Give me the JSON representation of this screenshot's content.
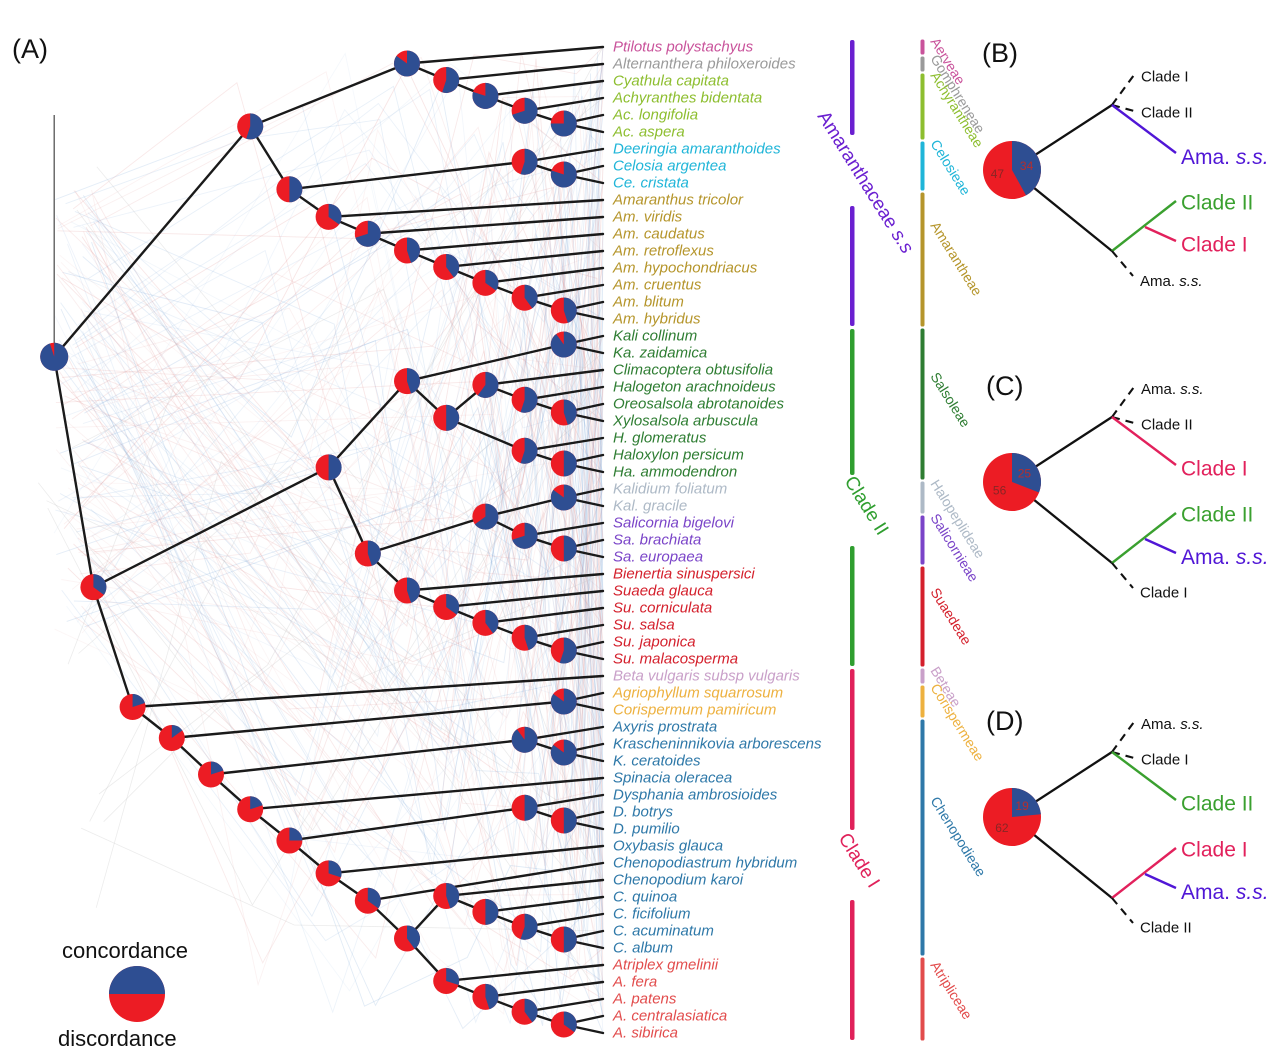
{
  "figure_letters": {
    "a": "(A)",
    "b": "(B)",
    "c": "(C)",
    "d": "(D)"
  },
  "legend": {
    "top": "concordance",
    "bottom": "discordance"
  },
  "palette": {
    "pie_blue": "#2E4E92",
    "pie_red": "#EC1C24",
    "edge": "#1a1a1a",
    "cloud_blue": "#7FA8D8",
    "cloud_red": "#DE9191",
    "cloud_gray": "#C8C8C8",
    "big_purple": "#5016D6",
    "big_green": "#3AA02F",
    "big_crimson": "#E2215C",
    "num_on_red": "#8A2525",
    "num_on_blue": "#B62E2E"
  },
  "species": [
    "Ptilotus polystachyus",
    "Alternanthera philoxeroides",
    "Cyathula capitata",
    "Achyranthes bidentata",
    "Ac. longifolia",
    "Ac. aspera",
    "Deeringia amaranthoides",
    "Celosia argentea",
    "Ce. cristata",
    "Amaranthus tricolor",
    "Am. viridis",
    "Am. caudatus",
    "Am. retroflexus",
    "Am. hypochondriacus",
    "Am. cruentus",
    "Am. blitum",
    "Am. hybridus",
    "Kali collinum",
    "Ka. zaidamica",
    "Climacoptera obtusifolia",
    "Halogeton arachnoideus",
    "Oreosalsola abrotanoides",
    "Xylosalsola arbuscula",
    "H. glomeratus",
    "Haloxylon persicum",
    "Ha. ammodendron",
    "Kalidium foliatum",
    "Kal. gracile",
    "Salicornia bigelovi",
    "Sa. brachiata",
    "Sa. europaea",
    "Bienertia sinuspersici",
    "Suaeda glauca",
    "Su. corniculata",
    "Su. salsa",
    "Su. japonica",
    "Su. malacosperma",
    "Beta vulgaris subsp vulgaris",
    "Agriophyllum squarrosum",
    "Corispermum pamiricum",
    "Axyris prostrata",
    "Krascheninnikovia arborescens",
    "K. ceratoides",
    "Spinacia oleracea",
    "Dysphania ambrosioides",
    "D. botrys",
    "D. pumilio",
    "Oxybasis glauca",
    "Chenopodiastrum hybridum",
    "Chenopodium karoi",
    "C. quinoa",
    "C. ficifolium",
    "C. acuminatum",
    "C. album",
    "Atriplex gmelinii",
    "A. fera",
    "A. patens",
    "A. centralasiatica",
    "A. sibirica"
  ],
  "tribes": [
    {
      "name": "Aerveae",
      "color": "#C9539B",
      "from": 0,
      "to": 0
    },
    {
      "name": "Gomphreneae",
      "color": "#9A9A9A",
      "from": 1,
      "to": 1
    },
    {
      "name": "Achyrantheae",
      "color": "#8DBE2F",
      "from": 2,
      "to": 5
    },
    {
      "name": "Celosieae",
      "color": "#1FB5D8",
      "from": 6,
      "to": 8
    },
    {
      "name": "Amarantheae",
      "color": "#B5952B",
      "from": 9,
      "to": 16
    },
    {
      "name": "Salsoleae",
      "color": "#2E7D32",
      "from": 17,
      "to": 25
    },
    {
      "name": "Halopeplideae",
      "color": "#ADB9C6",
      "from": 26,
      "to": 27
    },
    {
      "name": "Salicornieae",
      "color": "#7A44C8",
      "from": 28,
      "to": 30
    },
    {
      "name": "Suaedeae",
      "color": "#D4202C",
      "from": 31,
      "to": 36
    },
    {
      "name": "Beteae",
      "color": "#C9A0C9",
      "from": 37,
      "to": 37
    },
    {
      "name": "Corispermeae",
      "color": "#EDB13F",
      "from": 38,
      "to": 39
    },
    {
      "name": "Chenopodieae",
      "color": "#2E78A8",
      "from": 40,
      "to": 53
    },
    {
      "name": "Atripliceae",
      "color": "#E24C4C",
      "from": 54,
      "to": 58
    }
  ],
  "clades": [
    {
      "name": "Amaranthaceae s.s",
      "color": "#6A1FD0",
      "from": 0,
      "to": 16,
      "gap": [
        135,
        206
      ],
      "label_at": [
        817,
        116
      ]
    },
    {
      "name": "Clade II",
      "color": "#2F9E2F",
      "from": 17,
      "to": 36,
      "gap": [
        475,
        546
      ],
      "label_at": [
        844,
        481
      ]
    },
    {
      "name": "Clade I",
      "color": "#E0215A",
      "from": 37,
      "to": 58,
      "gap": [
        830,
        900
      ],
      "label_at": [
        838,
        838
      ]
    }
  ],
  "tree": {
    "b": 0.95,
    "c": [
      {
        "b": 0.55,
        "c": [
          {
            "b": 0.85,
            "c": [
              0,
              {
                "b": 0.55,
                "c": [
                  1,
                  {
                    "b": 0.8,
                    "c": [
                      2,
                      {
                        "b": 0.7,
                        "c": [
                          3,
                          {
                            "b": 0.75,
                            "c": [
                              4,
                              5
                            ]
                          }
                        ]
                      }
                    ]
                  }
                ]
              }
            ]
          },
          {
            "b": 0.5,
            "c": [
              {
                "b": 0.55,
                "c": [
                  6,
                  {
                    "b": 0.8,
                    "c": [
                      7,
                      8
                    ]
                  }
                ]
              },
              {
                "b": 0.35,
                "c": [
                  9,
                  {
                    "b": 0.7,
                    "c": [
                      10,
                      {
                        "b": 0.45,
                        "c": [
                          11,
                          {
                            "b": 0.4,
                            "c": [
                              12,
                              {
                                "b": 0.35,
                                "c": [
                                  13,
                                  {
                                    "b": 0.4,
                                    "c": [
                                      14,
                                      {
                                        "b": 0.45,
                                        "c": [
                                          15,
                                          16
                                        ]
                                      }
                                    ]
                                  }
                                ]
                              }
                            ]
                          }
                        ]
                      }
                    ]
                  }
                ]
              }
            ]
          }
        ]
      },
      {
        "b": 0.35,
        "c": [
          {
            "b": 0.5,
            "c": [
              {
                "b": 0.45,
                "c": [
                  {
                    "b": 0.9,
                    "c": [
                      17,
                      18
                    ]
                  },
                  {
                    "b": 0.5,
                    "c": [
                      {
                        "b": 0.6,
                        "c": [
                          19,
                          {
                            "b": 0.55,
                            "c": [
                              20,
                              {
                                "b": 0.45,
                                "c": [
                                  21,
                                  22
                                ]
                              }
                            ]
                          }
                        ]
                      },
                      {
                        "b": 0.55,
                        "c": [
                          23,
                          {
                            "b": 0.5,
                            "c": [
                              24,
                              25
                            ]
                          }
                        ]
                      }
                    ]
                  }
                ]
              },
              {
                "b": 0.45,
                "c": [
                  {
                    "b": 0.65,
                    "c": [
                      {
                        "b": 0.85,
                        "c": [
                          26,
                          27
                        ]
                      },
                      {
                        "b": 0.7,
                        "c": [
                          28,
                          {
                            "b": 0.5,
                            "c": [
                              29,
                              30
                            ]
                          }
                        ]
                      }
                    ]
                  },
                  {
                    "b": 0.45,
                    "c": [
                      31,
                      {
                        "b": 0.35,
                        "c": [
                          32,
                          {
                            "b": 0.4,
                            "c": [
                              33,
                              {
                                "b": 0.45,
                                "c": [
                                  34,
                                  {
                                    "b": 0.55,
                                    "c": [
                                      35,
                                      36
                                    ]
                                  }
                                ]
                              }
                            ]
                          }
                        ]
                      }
                    ]
                  }
                ]
              }
            ]
          },
          {
            "b": 0.2,
            "c": [
              37,
              {
                "b": 0.15,
                "c": [
                  {
                    "b": 0.85,
                    "c": [
                      38,
                      39
                    ]
                  },
                  {
                    "b": 0.2,
                    "c": [
                      {
                        "b": 0.9,
                        "c": [
                          40,
                          {
                            "b": 0.85,
                            "c": [
                              41,
                              42
                            ]
                          }
                        ]
                      },
                      {
                        "b": 0.2,
                        "c": [
                          43,
                          {
                            "b": 0.25,
                            "c": [
                              {
                                "b": 0.5,
                                "c": [
                                  44,
                                  {
                                    "b": 0.5,
                                    "c": [
                                      45,
                                      46
                                    ]
                                  }
                                ]
                              },
                              {
                                "b": 0.3,
                                "c": [
                                  47,
                                  {
                                    "b": 0.35,
                                    "c": [
                                      48,
                                      {
                                        "b": 0.4,
                                        "c": [
                                          {
                                            "b": 0.45,
                                            "c": [
                                              49,
                                              {
                                                "b": 0.5,
                                                "c": [
                                                  50,
                                                  {
                                                    "b": 0.55,
                                                    "c": [
                                                      51,
                                                      {
                                                        "b": 0.5,
                                                        "c": [
                                                          52,
                                                          53
                                                        ]
                                                      }
                                                    ]
                                                  }
                                                ]
                                              }
                                            ]
                                          },
                                          {
                                            "b": 0.3,
                                            "c": [
                                              54,
                                              {
                                                "b": 0.45,
                                                "c": [
                                                  55,
                                                  {
                                                    "b": 0.4,
                                                    "c": [
                                                      56,
                                                      {
                                                        "b": 0.35,
                                                        "c": [
                                                          57,
                                                          58
                                                        ]
                                                      }
                                                    ]
                                                  }
                                                ]
                                              }
                                            ]
                                          }
                                        ]
                                      }
                                    ]
                                  }
                                ]
                              }
                            ]
                          }
                        ]
                      }
                    ]
                  }
                ]
              }
            ]
          }
        ]
      }
    ]
  },
  "panels": [
    {
      "letter": "(B)",
      "pie": {
        "red": 47,
        "blue": 34
      },
      "upper": {
        "small": [
          "Clade I",
          "Clade II"
        ],
        "big": {
          "text": "Ama. s.s.",
          "color": "purple"
        }
      },
      "lower": {
        "big1": {
          "text": "Clade II",
          "color": "green"
        },
        "big2": {
          "text": "Clade I",
          "color": "crimson"
        },
        "small": "Ama. s.s."
      }
    },
    {
      "letter": "(C)",
      "pie": {
        "red": 56,
        "blue": 25
      },
      "upper": {
        "small": [
          "Ama. s.s.",
          "Clade II"
        ],
        "big": {
          "text": "Clade I",
          "color": "crimson"
        }
      },
      "lower": {
        "big1": {
          "text": "Clade II",
          "color": "green"
        },
        "big2": {
          "text": "Ama. s.s.",
          "color": "purple"
        },
        "small": "Clade I"
      }
    },
    {
      "letter": "(D)",
      "pie": {
        "red": 62,
        "blue": 19
      },
      "upper": {
        "small": [
          "Ama. s.s.",
          "Clade I"
        ],
        "big": {
          "text": "Clade II",
          "color": "green"
        }
      },
      "lower": {
        "big1": {
          "text": "Clade I",
          "color": "crimson"
        },
        "big2": {
          "text": "Ama. s.s.",
          "color": "purple"
        },
        "small": "Clade II"
      }
    }
  ]
}
